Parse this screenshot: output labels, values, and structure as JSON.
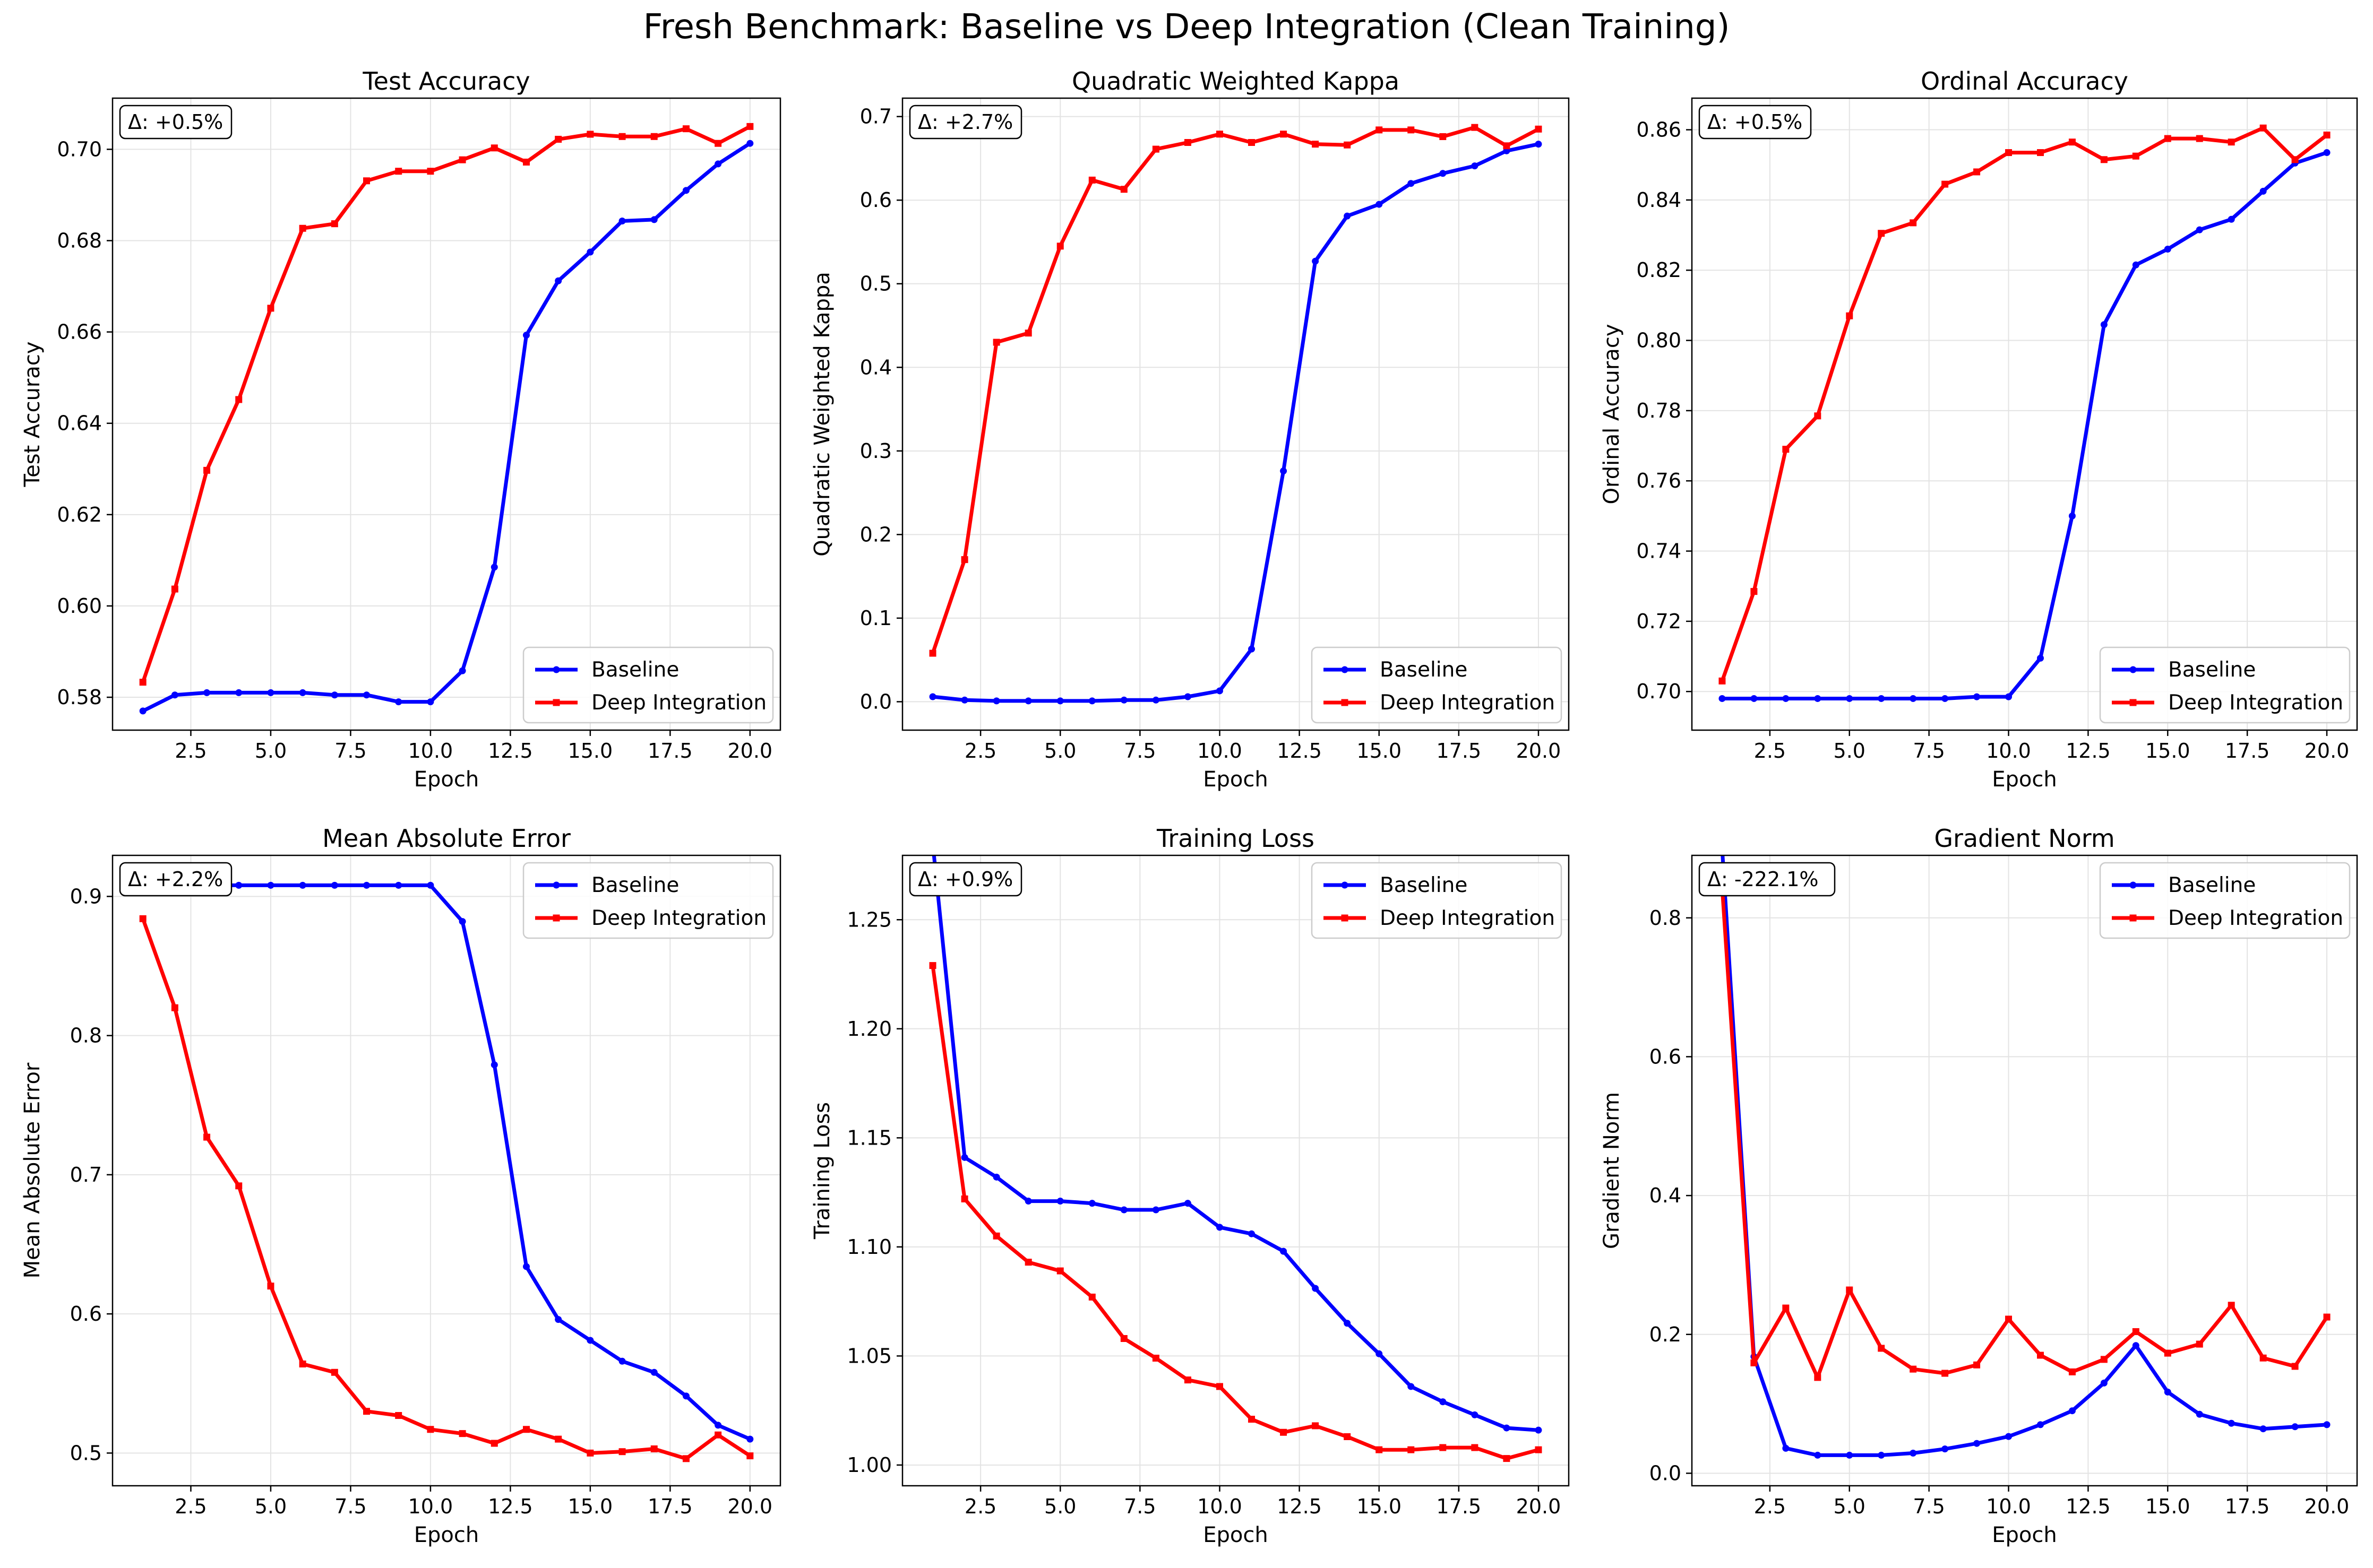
{
  "figure": {
    "title": "Fresh Benchmark: Baseline vs Deep Integration (Clean Training)"
  },
  "colors": {
    "baseline": "#0000ff",
    "deep": "#ff0000",
    "grid": "#e3e3e3"
  },
  "chart_data": [
    {
      "type": "line",
      "title": "Test Accuracy",
      "xlabel": "Epoch",
      "ylabel": "Test Accuracy",
      "annotation": "Δ: +0.5%",
      "legend_position": "lower-right",
      "grid": true,
      "xlim": [
        0.05,
        20.95
      ],
      "ylim": [
        0.5728,
        0.7112
      ],
      "xticks": [
        2.5,
        5.0,
        7.5,
        10.0,
        12.5,
        15.0,
        17.5,
        20.0
      ],
      "yticks": [
        0.58,
        0.6,
        0.62,
        0.64,
        0.66,
        0.68,
        0.7
      ],
      "ytick_decimals": 2,
      "x": [
        1,
        2,
        3,
        4,
        5,
        6,
        7,
        8,
        9,
        10,
        11,
        12,
        13,
        14,
        15,
        16,
        17,
        18,
        19,
        20
      ],
      "series": [
        {
          "name": "Baseline",
          "marker": "circle",
          "values": [
            0.577,
            0.5805,
            0.581,
            0.581,
            0.581,
            0.581,
            0.5805,
            0.5805,
            0.579,
            0.579,
            0.5858,
            0.6085,
            0.6593,
            0.6712,
            0.6775,
            0.6843,
            0.6846,
            0.691,
            0.6968,
            0.7013
          ]
        },
        {
          "name": "Deep Integration",
          "marker": "square",
          "values": [
            0.5833,
            0.6037,
            0.6297,
            0.6452,
            0.6652,
            0.6827,
            0.6837,
            0.6931,
            0.6952,
            0.6952,
            0.6977,
            0.7003,
            0.6972,
            0.7022,
            0.7033,
            0.7028,
            0.7028,
            0.7045,
            0.7013,
            0.705
          ]
        }
      ]
    },
    {
      "type": "line",
      "title": "Quadratic Weighted Kappa",
      "xlabel": "Epoch",
      "ylabel": "Quadratic Weighted Kappa",
      "annotation": "Δ: +2.7%",
      "legend_position": "lower-right",
      "grid": true,
      "xlim": [
        0.05,
        20.95
      ],
      "ylim": [
        -0.034,
        0.722
      ],
      "xticks": [
        2.5,
        5.0,
        7.5,
        10.0,
        12.5,
        15.0,
        17.5,
        20.0
      ],
      "yticks": [
        0.0,
        0.1,
        0.2,
        0.3,
        0.4,
        0.5,
        0.6,
        0.7
      ],
      "ytick_decimals": 1,
      "x": [
        1,
        2,
        3,
        4,
        5,
        6,
        7,
        8,
        9,
        10,
        11,
        12,
        13,
        14,
        15,
        16,
        17,
        18,
        19,
        20
      ],
      "series": [
        {
          "name": "Baseline",
          "marker": "circle",
          "values": [
            0.006,
            0.002,
            0.001,
            0.001,
            0.001,
            0.001,
            0.002,
            0.002,
            0.006,
            0.013,
            0.063,
            0.276,
            0.527,
            0.581,
            0.595,
            0.62,
            0.632,
            0.641,
            0.659,
            0.667
          ]
        },
        {
          "name": "Deep Integration",
          "marker": "square",
          "values": [
            0.058,
            0.17,
            0.43,
            0.441,
            0.545,
            0.624,
            0.613,
            0.661,
            0.669,
            0.679,
            0.669,
            0.679,
            0.667,
            0.666,
            0.684,
            0.684,
            0.676,
            0.687,
            0.665,
            0.685
          ]
        }
      ]
    },
    {
      "type": "line",
      "title": "Ordinal Accuracy",
      "xlabel": "Epoch",
      "ylabel": "Ordinal Accuracy",
      "annotation": "Δ: +0.5%",
      "legend_position": "lower-right",
      "grid": true,
      "xlim": [
        0.05,
        20.95
      ],
      "ylim": [
        0.689,
        0.869
      ],
      "xticks": [
        2.5,
        5.0,
        7.5,
        10.0,
        12.5,
        15.0,
        17.5,
        20.0
      ],
      "yticks": [
        0.7,
        0.72,
        0.74,
        0.76,
        0.78,
        0.8,
        0.82,
        0.84,
        0.86
      ],
      "ytick_decimals": 2,
      "x": [
        1,
        2,
        3,
        4,
        5,
        6,
        7,
        8,
        9,
        10,
        11,
        12,
        13,
        14,
        15,
        16,
        17,
        18,
        19,
        20
      ],
      "series": [
        {
          "name": "Baseline",
          "marker": "circle",
          "values": [
            0.698,
            0.698,
            0.698,
            0.698,
            0.698,
            0.698,
            0.698,
            0.698,
            0.6985,
            0.6985,
            0.7095,
            0.75,
            0.8045,
            0.8215,
            0.826,
            0.8315,
            0.8345,
            0.8425,
            0.8505,
            0.8535
          ]
        },
        {
          "name": "Deep Integration",
          "marker": "square",
          "values": [
            0.703,
            0.7285,
            0.769,
            0.7785,
            0.807,
            0.8305,
            0.8335,
            0.8445,
            0.848,
            0.8535,
            0.8535,
            0.8565,
            0.8515,
            0.8525,
            0.8575,
            0.8575,
            0.8565,
            0.8605,
            0.8515,
            0.8585
          ]
        }
      ]
    },
    {
      "type": "line",
      "title": "Mean Absolute Error",
      "xlabel": "Epoch",
      "ylabel": "Mean Absolute Error",
      "annotation": "Δ: +2.2%",
      "legend_position": "upper-right",
      "grid": true,
      "xlim": [
        0.05,
        20.95
      ],
      "ylim": [
        0.4765,
        0.9295
      ],
      "xticks": [
        2.5,
        5.0,
        7.5,
        10.0,
        12.5,
        15.0,
        17.5,
        20.0
      ],
      "yticks": [
        0.5,
        0.6,
        0.7,
        0.8,
        0.9
      ],
      "ytick_decimals": 1,
      "x": [
        1,
        2,
        3,
        4,
        5,
        6,
        7,
        8,
        9,
        10,
        11,
        12,
        13,
        14,
        15,
        16,
        17,
        18,
        19,
        20
      ],
      "series": [
        {
          "name": "Baseline",
          "marker": "circle",
          "values": [
            0.908,
            0.908,
            0.908,
            0.908,
            0.908,
            0.908,
            0.908,
            0.908,
            0.908,
            0.908,
            0.882,
            0.779,
            0.634,
            0.596,
            0.581,
            0.566,
            0.558,
            0.541,
            0.52,
            0.51
          ]
        },
        {
          "name": "Deep Integration",
          "marker": "square",
          "values": [
            0.884,
            0.82,
            0.727,
            0.692,
            0.62,
            0.564,
            0.558,
            0.53,
            0.527,
            0.517,
            0.514,
            0.507,
            0.517,
            0.51,
            0.5,
            0.501,
            0.503,
            0.496,
            0.513,
            0.498
          ]
        }
      ]
    },
    {
      "type": "line",
      "title": "Training Loss",
      "xlabel": "Epoch",
      "ylabel": "Training Loss",
      "annotation": "Δ: +0.9%",
      "legend_position": "upper-right",
      "grid": true,
      "xlim": [
        0.05,
        20.95
      ],
      "ylim": [
        0.9905,
        1.2795
      ],
      "xticks": [
        2.5,
        5.0,
        7.5,
        10.0,
        12.5,
        15.0,
        17.5,
        20.0
      ],
      "yticks": [
        1.0,
        1.05,
        1.1,
        1.15,
        1.2,
        1.25
      ],
      "ytick_decimals": 2,
      "x": [
        1,
        2,
        3,
        4,
        5,
        6,
        7,
        8,
        9,
        10,
        11,
        12,
        13,
        14,
        15,
        16,
        17,
        18,
        19,
        20
      ],
      "series": [
        {
          "name": "Baseline",
          "marker": "circle",
          "values": [
            1.285,
            1.141,
            1.132,
            1.121,
            1.121,
            1.12,
            1.117,
            1.117,
            1.12,
            1.109,
            1.106,
            1.098,
            1.081,
            1.065,
            1.051,
            1.036,
            1.029,
            1.023,
            1.017,
            1.016
          ]
        },
        {
          "name": "Deep Integration",
          "marker": "square",
          "values": [
            1.229,
            1.122,
            1.105,
            1.093,
            1.089,
            1.077,
            1.058,
            1.049,
            1.039,
            1.036,
            1.021,
            1.015,
            1.018,
            1.013,
            1.007,
            1.007,
            1.008,
            1.008,
            1.003,
            1.007
          ]
        }
      ]
    },
    {
      "type": "line",
      "title": "Gradient Norm",
      "xlabel": "Epoch",
      "ylabel": "Gradient Norm",
      "annotation": "Δ: -222.1%",
      "legend_position": "upper-right",
      "grid": true,
      "xlim": [
        0.05,
        20.95
      ],
      "ylim": [
        -0.018,
        0.89
      ],
      "xticks": [
        2.5,
        5.0,
        7.5,
        10.0,
        12.5,
        15.0,
        17.5,
        20.0
      ],
      "yticks": [
        0.0,
        0.2,
        0.4,
        0.6,
        0.8
      ],
      "ytick_decimals": 1,
      "x": [
        1,
        2,
        3,
        4,
        5,
        6,
        7,
        8,
        9,
        10,
        11,
        12,
        13,
        14,
        15,
        16,
        17,
        18,
        19,
        20
      ],
      "series": [
        {
          "name": "Baseline",
          "marker": "circle",
          "values": [
            0.9,
            0.168,
            0.036,
            0.026,
            0.026,
            0.026,
            0.029,
            0.035,
            0.043,
            0.053,
            0.07,
            0.09,
            0.13,
            0.184,
            0.117,
            0.085,
            0.072,
            0.064,
            0.067,
            0.07
          ]
        },
        {
          "name": "Deep Integration",
          "marker": "square",
          "values": [
            0.844,
            0.159,
            0.238,
            0.138,
            0.264,
            0.18,
            0.15,
            0.144,
            0.156,
            0.222,
            0.17,
            0.146,
            0.164,
            0.204,
            0.173,
            0.186,
            0.242,
            0.166,
            0.154,
            0.225
          ]
        }
      ]
    }
  ]
}
